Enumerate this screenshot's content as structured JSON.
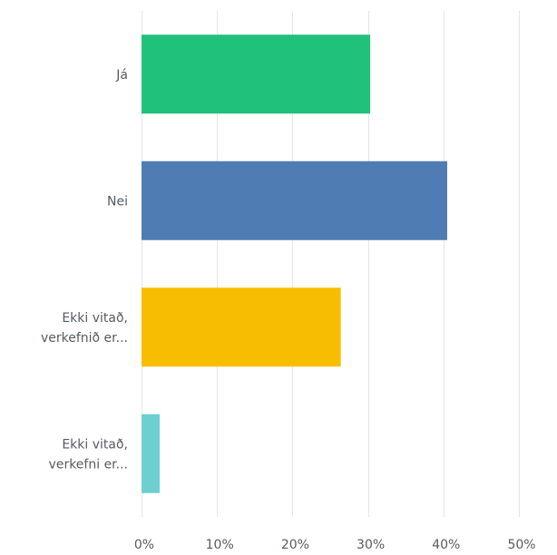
{
  "chart_data": {
    "type": "bar",
    "orientation": "horizontal",
    "categories": [
      [
        "Já"
      ],
      [
        "Nei"
      ],
      [
        "Ekki vitað,",
        "verkefnið er..."
      ],
      [
        "Ekki vitað,",
        "verkefni er..."
      ]
    ],
    "values": [
      30.3,
      40.5,
      26.4,
      2.4
    ],
    "colors": [
      "#1fc17b",
      "#4e7cb3",
      "#f7bd00",
      "#6ccfd0"
    ],
    "x_ticks": [
      "0%",
      "10%",
      "20%",
      "30%",
      "40%",
      "50%"
    ],
    "xlim": [
      0,
      50
    ],
    "x_unit": "percent",
    "grid": true,
    "title": "",
    "xlabel": "",
    "ylabel": ""
  }
}
